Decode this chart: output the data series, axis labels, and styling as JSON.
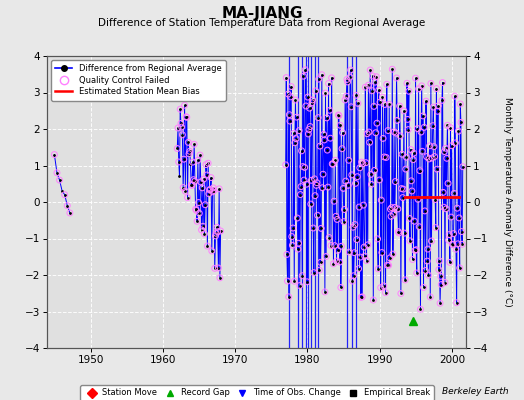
{
  "title": "MA-JIANG",
  "subtitle": "Difference of Station Temperature Data from Regional Average",
  "ylabel_right": "Monthly Temperature Anomaly Difference (°C)",
  "xlim": [
    1944,
    2002
  ],
  "ylim": [
    -4,
    4
  ],
  "bg_color": "#e8e8e8",
  "plot_bg_color": "#e0e0e0",
  "grid_color": "#c8c8c8",
  "watermark": "Berkeley Earth",
  "xticks": [
    1950,
    1960,
    1970,
    1980,
    1990,
    2000
  ],
  "yticks": [
    -4,
    -3,
    -2,
    -1,
    0,
    1,
    2,
    3,
    4
  ],
  "mean_bias_x1": 1993.5,
  "mean_bias_x2": 2001.0,
  "mean_bias_y": 0.15,
  "record_gap_x": 1994.6,
  "record_gap_y": -3.25,
  "vlines": [
    1977.5,
    1978.75,
    1979.25,
    1979.75,
    1980.1,
    1980.5,
    1981.0,
    1981.5,
    1985.5,
    1986.2,
    1986.7
  ],
  "early_x_start": 1945.5,
  "early_n": 7,
  "mid_x_start": 1962.0,
  "mid_n": 60,
  "main_x_start": 1977.0,
  "main_n": 290,
  "seed": 17
}
